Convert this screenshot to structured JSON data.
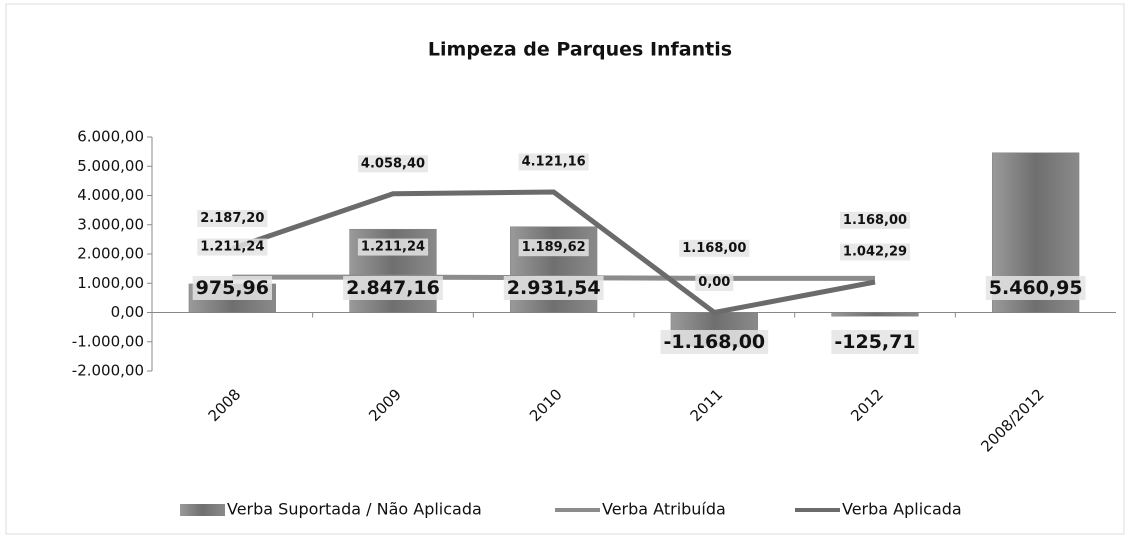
{
  "chart_data": {
    "type": "bar_line",
    "title": "Limpeza de Parques Infantis",
    "categories": [
      "2008",
      "2009",
      "2010",
      "2011",
      "2012",
      "2008/2012"
    ],
    "series": [
      {
        "name": "Verba Suportada / Não Aplicada",
        "type": "bar",
        "color": "#7f7f7f",
        "values": [
          975.96,
          2847.16,
          2931.54,
          -1168.0,
          -125.71,
          5460.95
        ],
        "value_labels": [
          "975,96",
          "2.847,16",
          "2.931,54",
          "-1.168,00",
          "-125,71",
          "5.460,95"
        ]
      },
      {
        "name": "Verba Atribuída",
        "type": "line",
        "color": "#8c8c8c",
        "values": [
          1211.24,
          1211.24,
          1189.62,
          1168.0,
          1168.0,
          null
        ],
        "value_labels": [
          "1.211,24",
          "1.211,24",
          "1.189,62",
          "1.168,00",
          "1.168,00",
          null
        ]
      },
      {
        "name": "Verba Aplicada",
        "type": "line",
        "color": "#6b6b6b",
        "values": [
          2187.2,
          4058.4,
          4121.16,
          0.0,
          1042.29,
          null
        ],
        "value_labels": [
          "2.187,20",
          "4.058,40",
          "4.121,16",
          "0,00",
          "1.042,29",
          null
        ]
      }
    ],
    "ylim": [
      -2000,
      6000
    ],
    "yticks": [
      {
        "value": -2000,
        "label": "-2.000,00"
      },
      {
        "value": -1000,
        "label": "-1.000,00"
      },
      {
        "value": 0,
        "label": "0,00"
      },
      {
        "value": 1000,
        "label": "1.000,00"
      },
      {
        "value": 2000,
        "label": "2.000,00"
      },
      {
        "value": 3000,
        "label": "3.000,00"
      },
      {
        "value": 4000,
        "label": "4.000,00"
      },
      {
        "value": 5000,
        "label": "5.000,00"
      },
      {
        "value": 6000,
        "label": "6.000,00"
      }
    ],
    "grid": false,
    "legend": "bottom"
  }
}
